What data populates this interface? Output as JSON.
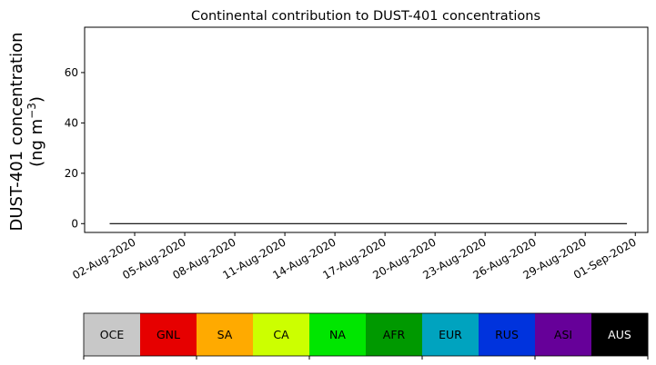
{
  "chart_data": {
    "type": "area",
    "stacked": true,
    "title": "Continental contribution to DUST-401 concentrations",
    "ylabel_line1": "DUST-401 concentration",
    "ylabel_line2": "(ng m",
    "ylabel_sup": "−3",
    "ylabel_close": ")",
    "xlabel": "",
    "ylim": [
      -3.5,
      78
    ],
    "yticks": [
      0,
      20,
      40,
      60
    ],
    "xtick_labels": [
      "02-Aug-2020",
      "05-Aug-2020",
      "08-Aug-2020",
      "11-Aug-2020",
      "14-Aug-2020",
      "17-Aug-2020",
      "20-Aug-2020",
      "23-Aug-2020",
      "26-Aug-2020",
      "29-Aug-2020",
      "01-Sep-2020"
    ],
    "xtick_positions": [
      1.5,
      4.5,
      7.5,
      10.5,
      13.5,
      16.5,
      19.5,
      22.5,
      25.5,
      28.5,
      31.5
    ],
    "xlim": [
      -1.5,
      32.25
    ],
    "x": [
      0,
      0.5,
      1,
      1.5,
      2,
      2.5,
      3,
      3.5,
      4,
      4.5,
      5,
      5.5,
      6,
      6.5,
      7,
      7.5,
      8,
      8.5,
      9,
      9.5,
      10,
      10.5,
      11,
      11.5,
      12,
      12.5,
      13,
      13.5,
      14,
      14.5,
      15,
      15.5,
      16,
      16.5,
      17,
      17.5,
      18,
      18.5,
      19,
      19.5,
      20,
      20.5,
      21,
      21.5,
      22,
      22.5,
      23,
      23.5,
      24,
      24.5,
      25,
      25.5,
      26,
      26.5,
      27,
      27.5,
      28,
      28.5,
      29,
      29.5,
      30,
      30.5,
      31
    ],
    "series": [
      {
        "name": "OCE",
        "color": "#c8c8c8",
        "values": [
          0,
          0,
          0,
          0,
          0,
          0,
          0,
          0,
          0,
          0,
          0,
          0,
          0,
          0,
          0,
          0,
          0,
          0,
          0,
          0,
          0,
          0,
          0,
          0,
          0,
          0,
          0,
          0,
          0,
          0,
          0,
          0,
          0,
          0,
          0,
          0,
          0,
          0,
          0,
          0,
          0,
          0,
          0,
          0,
          0,
          0,
          0,
          0,
          0,
          0,
          0,
          0,
          0,
          0,
          0,
          0,
          0,
          0,
          0,
          0,
          0,
          0,
          0
        ]
      },
      {
        "name": "GNL",
        "color": "#e60000",
        "values": [
          0,
          0,
          0,
          0,
          0,
          0,
          0,
          0,
          0,
          0,
          0,
          0,
          0,
          0,
          0,
          0,
          0,
          0,
          0,
          0,
          0,
          0,
          0,
          0,
          0,
          0,
          0,
          0,
          0,
          0,
          0,
          0,
          0,
          0,
          0,
          0,
          0,
          0,
          0,
          0,
          0,
          0,
          0,
          0,
          0,
          0,
          0,
          0,
          0,
          0,
          0,
          0,
          0,
          0,
          0,
          0,
          0,
          0,
          0,
          0,
          0,
          0,
          0
        ]
      },
      {
        "name": "SA",
        "color": "#ffaa00",
        "values": [
          0,
          0,
          0,
          0,
          0,
          0,
          0,
          0,
          0,
          0,
          0,
          0,
          0,
          0,
          0,
          0,
          0,
          0,
          0,
          0,
          0,
          0,
          0,
          0,
          0,
          0,
          0,
          0,
          0,
          0,
          0,
          0,
          0,
          0,
          0,
          0,
          0,
          0,
          0,
          0,
          0,
          0,
          0,
          0,
          0,
          0,
          0,
          0,
          0,
          0,
          0,
          0,
          0,
          0,
          0,
          0,
          0,
          0,
          0,
          0,
          0,
          0,
          0
        ]
      },
      {
        "name": "CA",
        "color": "#ccff00",
        "values": [
          0,
          0,
          0,
          0,
          0,
          0,
          0,
          0,
          0,
          0,
          0,
          0,
          0,
          0,
          0,
          0,
          0,
          0,
          0,
          0,
          0,
          0,
          0,
          0,
          0,
          0,
          0,
          0,
          0,
          0,
          0,
          0,
          0,
          0,
          0,
          0,
          0,
          0,
          0,
          0,
          0,
          0,
          0,
          0,
          0,
          0,
          0,
          0,
          0,
          0,
          0,
          0,
          0,
          0,
          0,
          0,
          0,
          0,
          0,
          0,
          0,
          0,
          0
        ]
      },
      {
        "name": "NA",
        "color": "#00e600",
        "values": [
          0,
          0,
          0,
          0,
          0,
          0,
          0,
          0,
          0,
          0,
          0,
          0,
          0,
          0,
          0,
          0,
          0,
          0,
          0,
          0,
          0,
          0,
          0,
          0,
          0,
          0,
          0,
          0,
          0,
          0,
          0,
          0,
          0,
          0,
          0,
          0,
          0,
          0,
          0,
          0,
          0,
          0,
          0,
          0,
          0,
          0,
          0,
          0,
          0,
          0,
          0,
          0,
          0,
          0,
          0,
          0,
          0,
          0,
          0,
          0,
          0,
          0,
          0
        ]
      },
      {
        "name": "AFR",
        "color": "#009900",
        "values": [
          0,
          0,
          0,
          0,
          0,
          0,
          0,
          0,
          0,
          0,
          0,
          0,
          0,
          0,
          0,
          0,
          0,
          0,
          0,
          0,
          0,
          0,
          0,
          0,
          0,
          0,
          0,
          0,
          0,
          0,
          0,
          0,
          0,
          0,
          0,
          0,
          0,
          0,
          0,
          0,
          0,
          0,
          0,
          0,
          0,
          0,
          0,
          0,
          0,
          0,
          0,
          0,
          0,
          0,
          0,
          0,
          0,
          0,
          0,
          0,
          0,
          0,
          0
        ]
      },
      {
        "name": "EUR",
        "color": "#00a3bf",
        "values": [
          0,
          0,
          0,
          0,
          0,
          0,
          0,
          0,
          0,
          0,
          0,
          0,
          0,
          0,
          0,
          0,
          0,
          0,
          0,
          0,
          0,
          0,
          0,
          0,
          0,
          0,
          0,
          0,
          0,
          0,
          0,
          0,
          0,
          0,
          0,
          0,
          0,
          0,
          0,
          0,
          0,
          0,
          0,
          0,
          0,
          0,
          0,
          0,
          0,
          0,
          0,
          0,
          0,
          0,
          0,
          0,
          0,
          0,
          0,
          0,
          0,
          0,
          0
        ]
      },
      {
        "name": "RUS",
        "color": "#0033dd",
        "values": [
          0,
          0,
          0,
          0,
          0,
          0,
          0,
          0,
          0,
          0,
          0,
          0,
          0,
          0,
          0,
          0,
          0,
          0,
          0,
          0,
          0,
          0,
          0,
          0,
          0,
          0,
          0,
          0,
          0,
          0,
          0,
          0,
          0,
          0,
          0,
          0,
          0,
          0,
          0,
          0,
          0,
          0,
          0,
          0,
          0,
          0,
          0,
          0,
          0,
          0,
          0,
          0,
          0,
          0,
          0,
          0,
          0,
          0,
          0,
          0,
          0,
          0,
          0
        ]
      },
      {
        "name": "ASI",
        "color": "#660099",
        "values": [
          0,
          0,
          0,
          0,
          0,
          0,
          0,
          0,
          0,
          0,
          0,
          0,
          0,
          0,
          0,
          0,
          0,
          0,
          0,
          0,
          0,
          0,
          0,
          0,
          0,
          0,
          0,
          0,
          0,
          0,
          0,
          0,
          0,
          0,
          0,
          0,
          0,
          0,
          0,
          0,
          0,
          0,
          0,
          0,
          0,
          0,
          0,
          0,
          0,
          0,
          0,
          0,
          0,
          0,
          0,
          0,
          0,
          0,
          0,
          0,
          0,
          0,
          0
        ]
      },
      {
        "name": "AUS",
        "color": "#000000",
        "values": [
          0,
          0,
          0,
          0,
          0,
          0,
          0,
          0,
          0,
          0,
          0,
          0,
          0,
          0,
          0,
          0,
          0,
          0,
          0,
          0,
          0,
          0,
          0,
          0,
          0,
          0,
          0,
          0,
          0,
          0,
          0,
          0,
          0,
          0,
          0,
          0,
          0,
          0,
          0,
          0,
          0,
          0,
          0,
          0,
          0,
          0,
          0,
          0,
          0,
          0,
          0,
          0,
          0,
          0,
          0,
          0,
          0,
          0,
          0,
          0,
          0,
          0,
          0
        ]
      }
    ],
    "legend": {
      "placement": "bottom",
      "entries": [
        "OCE",
        "GNL",
        "SA",
        "CA",
        "NA",
        "AFR",
        "EUR",
        "RUS",
        "ASI",
        "AUS"
      ],
      "label_colors": [
        "#000000",
        "#000000",
        "#000000",
        "#000000",
        "#000000",
        "#000000",
        "#000000",
        "#000000",
        "#000000",
        "#ffffff"
      ]
    },
    "grid": false
  }
}
